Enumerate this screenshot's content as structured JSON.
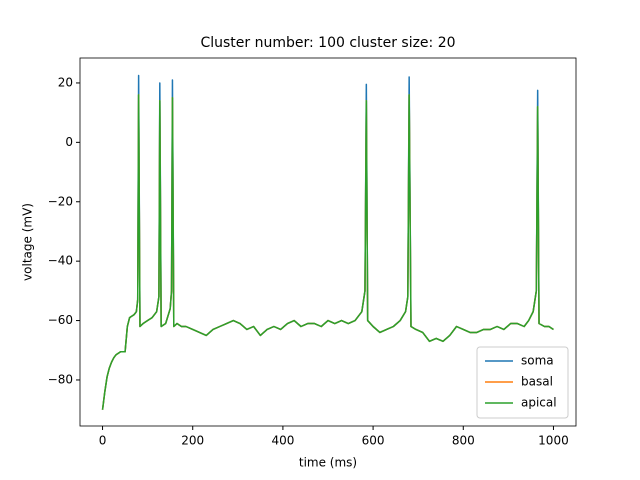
{
  "chart_data": {
    "type": "line",
    "title": "Cluster number: 100 cluster size: 20",
    "xlabel": "time (ms)",
    "ylabel": "voltage (mV)",
    "x": [
      0,
      5,
      10,
      15,
      20,
      25,
      30,
      40,
      50,
      55,
      60,
      70,
      75,
      78,
      80,
      83,
      90,
      100,
      110,
      120,
      125,
      127,
      130,
      140,
      150,
      153,
      155,
      158,
      165,
      175,
      185,
      200,
      215,
      230,
      245,
      260,
      275,
      290,
      305,
      320,
      335,
      350,
      365,
      380,
      395,
      410,
      425,
      440,
      455,
      470,
      485,
      500,
      515,
      530,
      545,
      560,
      575,
      582,
      585,
      588,
      600,
      615,
      630,
      645,
      660,
      672,
      677,
      680,
      684,
      695,
      710,
      725,
      740,
      755,
      770,
      785,
      800,
      815,
      830,
      845,
      860,
      875,
      890,
      905,
      920,
      935,
      945,
      955,
      962,
      965,
      968,
      980,
      990,
      1000
    ],
    "series": [
      {
        "name": "soma",
        "color": "#1f77b4",
        "values": [
          -90,
          -84,
          -79,
          -76,
          -74,
          -72.5,
          -71.5,
          -70.5,
          -70.5,
          -62,
          -59,
          -58,
          -57,
          -53,
          22.5,
          -62,
          -61,
          -60,
          -59,
          -57,
          -52,
          20,
          -62,
          -61,
          -56,
          -50,
          21,
          -62,
          -61,
          -62,
          -62,
          -63,
          -64,
          -65,
          -63,
          -62,
          -61,
          -60,
          -61,
          -63,
          -62,
          -65,
          -63,
          -62,
          -63,
          -61,
          -60,
          -62,
          -61,
          -61,
          -62,
          -60,
          -61,
          -60,
          -61,
          -60,
          -57,
          -50,
          19.5,
          -60,
          -62,
          -64,
          -63,
          -62,
          -60,
          -57,
          -52,
          22,
          -62,
          -63,
          -64,
          -67,
          -66,
          -67,
          -65,
          -62,
          -63,
          -64,
          -64,
          -63,
          -63,
          -62,
          -63,
          -61,
          -61,
          -62,
          -60,
          -57,
          -50,
          17.5,
          -61,
          -62,
          -62,
          -63
        ]
      },
      {
        "name": "basal",
        "color": "#ff7f0e",
        "values": [
          -90,
          -84,
          -79,
          -76,
          -74,
          -72.5,
          -71.5,
          -70.5,
          -70.5,
          -62,
          -59,
          -58,
          -57,
          -53,
          16,
          -62,
          -61,
          -60,
          -59,
          -57,
          -52,
          14,
          -62,
          -61,
          -56,
          -50,
          15,
          -62,
          -61,
          -62,
          -62,
          -63,
          -64,
          -65,
          -63,
          -62,
          -61,
          -60,
          -61,
          -63,
          -62,
          -65,
          -63,
          -62,
          -63,
          -61,
          -60,
          -62,
          -61,
          -61,
          -62,
          -60,
          -61,
          -60,
          -61,
          -60,
          -57,
          -50,
          14,
          -60,
          -62,
          -64,
          -63,
          -62,
          -60,
          -57,
          -52,
          16,
          -62,
          -63,
          -64,
          -67,
          -66,
          -67,
          -65,
          -62,
          -63,
          -64,
          -64,
          -63,
          -63,
          -62,
          -63,
          -61,
          -61,
          -62,
          -60,
          -57,
          -50,
          12,
          -61,
          -62,
          -62,
          -63
        ]
      },
      {
        "name": "apical",
        "color": "#2ca02c",
        "values": [
          -90,
          -84,
          -79,
          -76,
          -74,
          -72.5,
          -71.5,
          -70.5,
          -70.5,
          -62,
          -59,
          -58,
          -57,
          -53,
          16,
          -62,
          -61,
          -60,
          -59,
          -57,
          -52,
          14,
          -62,
          -61,
          -56,
          -50,
          15,
          -62,
          -61,
          -62,
          -62,
          -63,
          -64,
          -65,
          -63,
          -62,
          -61,
          -60,
          -61,
          -63,
          -62,
          -65,
          -63,
          -62,
          -63,
          -61,
          -60,
          -62,
          -61,
          -61,
          -62,
          -60,
          -61,
          -60,
          -61,
          -60,
          -57,
          -50,
          14,
          -60,
          -62,
          -64,
          -63,
          -62,
          -60,
          -57,
          -52,
          16,
          -62,
          -63,
          -64,
          -67,
          -66,
          -67,
          -65,
          -62,
          -63,
          -64,
          -64,
          -63,
          -63,
          -62,
          -63,
          -61,
          -61,
          -62,
          -60,
          -57,
          -50,
          12,
          -61,
          -62,
          -62,
          -63
        ]
      }
    ],
    "xlim": [
      -50,
      1050
    ],
    "ylim": [
      -95.5,
      28.4
    ],
    "xticks": [
      0,
      200,
      400,
      600,
      800,
      1000
    ],
    "yticks": [
      {
        "value": -80,
        "label": "−80"
      },
      {
        "value": -60,
        "label": "−60"
      },
      {
        "value": -40,
        "label": "−40"
      },
      {
        "value": -20,
        "label": "−20"
      },
      0,
      20
    ],
    "legend": "lower right"
  }
}
